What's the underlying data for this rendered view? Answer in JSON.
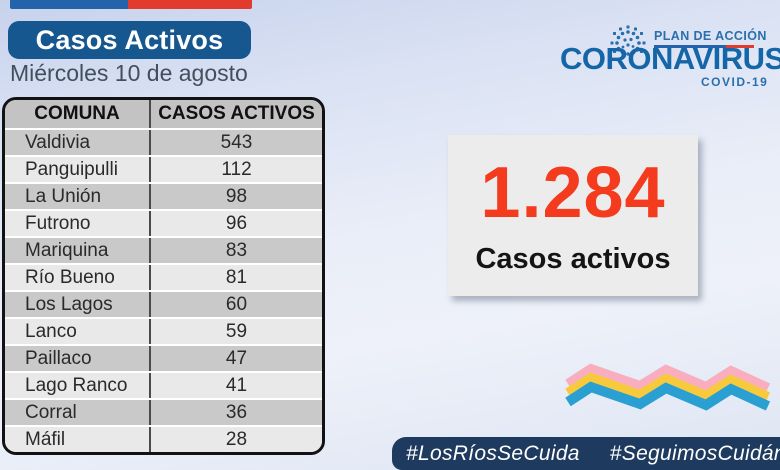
{
  "header": {
    "title": "Casos Activos",
    "date": "Miércoles 10 de agosto"
  },
  "logo": {
    "plan_label": "PLAN DE ACCIÓN",
    "brand": "CORONAVIRUS",
    "sub": "COVID-19"
  },
  "table": {
    "columns": [
      "COMUNA",
      "CASOS ACTIVOS"
    ],
    "rows": [
      [
        "Valdivia",
        "543"
      ],
      [
        "Panguipulli",
        "112"
      ],
      [
        "La Unión",
        "98"
      ],
      [
        "Futrono",
        "96"
      ],
      [
        "Mariquina",
        "83"
      ],
      [
        "Río Bueno",
        "81"
      ],
      [
        "Los Lagos",
        "60"
      ],
      [
        "Lanco",
        "59"
      ],
      [
        "Paillaco",
        "47"
      ],
      [
        "Lago Ranco",
        "41"
      ],
      [
        "Corral",
        "36"
      ],
      [
        "Máfil",
        "28"
      ]
    ]
  },
  "summary": {
    "value": "1.284",
    "label": "Casos activos"
  },
  "footer": {
    "hashtags": [
      "#LosRíosSeCuida",
      "#SeguimosCuidándonos"
    ]
  },
  "colors": {
    "title_pill": "#15578e",
    "flag_blue": "#2263ab",
    "flag_red": "#e23b2e",
    "brand_blue": "#1566a8",
    "kpi_red": "#f43b1d",
    "table_header_bg": "#c3c3c3",
    "row_light": "#e9e9e9",
    "row_dark": "#c9c9c9",
    "footer_bar": "#1e3a5f"
  },
  "decor": {
    "zigzag": [
      "#f9aec0",
      "#f7ca3e",
      "#2a9fd1"
    ]
  }
}
